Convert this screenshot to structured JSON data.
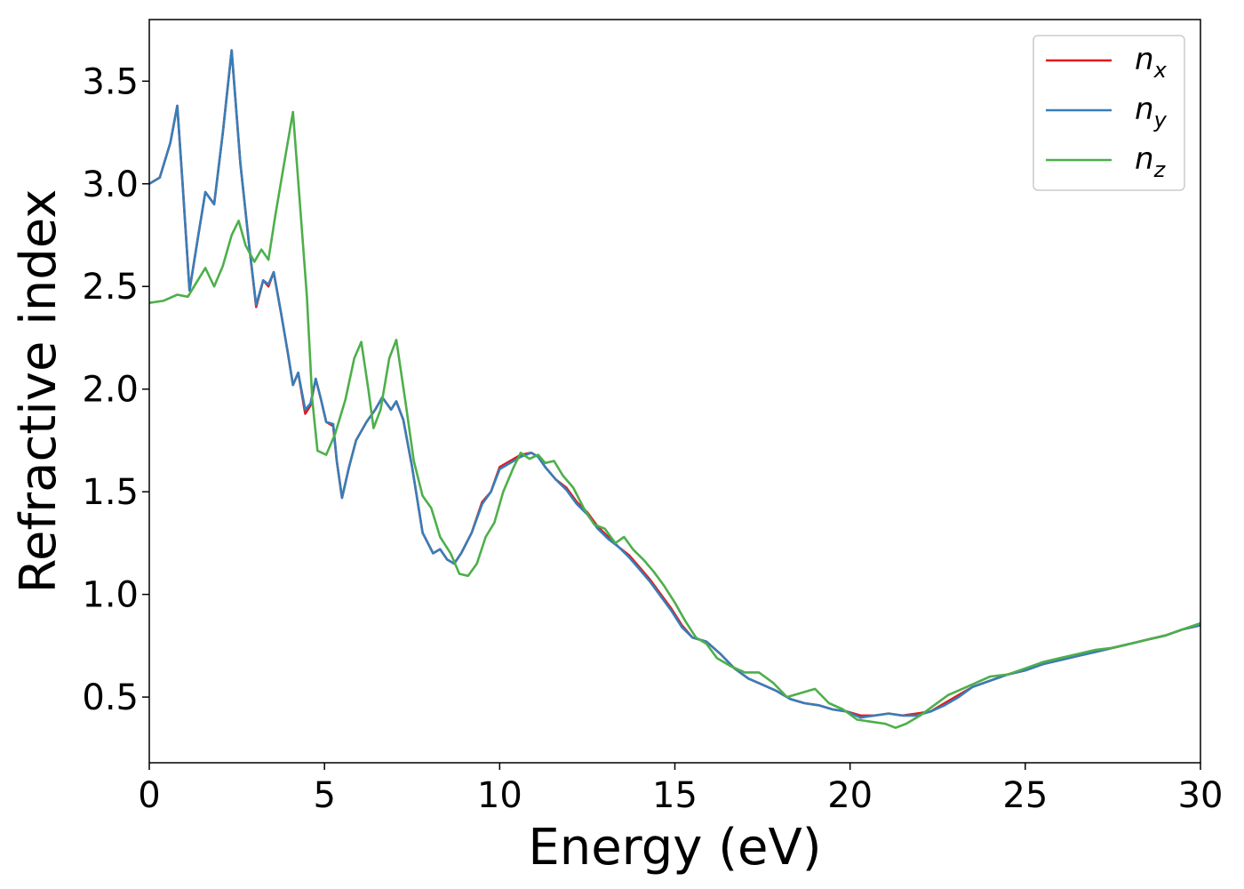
{
  "chart_data": {
    "type": "line",
    "title": "",
    "xlabel": "Energy (eV)",
    "ylabel": "Refractive index",
    "xlim": [
      0,
      30
    ],
    "ylim": [
      0.18,
      3.8
    ],
    "x_ticks": [
      0,
      5,
      10,
      15,
      20,
      25,
      30
    ],
    "y_ticks": [
      0.5,
      1.0,
      1.5,
      2.0,
      2.5,
      3.0,
      3.5
    ],
    "grid": false,
    "legend_position": "top-right",
    "series": [
      {
        "name": "n_x",
        "label_base": "n",
        "label_sub": "x",
        "color": "#e41a1c",
        "points": [
          [
            0,
            3.0
          ],
          [
            0.3,
            3.03
          ],
          [
            0.6,
            3.2
          ],
          [
            0.8,
            3.38
          ],
          [
            0.95,
            3.0
          ],
          [
            1.15,
            2.48
          ],
          [
            1.4,
            2.75
          ],
          [
            1.6,
            2.96
          ],
          [
            1.85,
            2.9
          ],
          [
            2.1,
            3.25
          ],
          [
            2.35,
            3.65
          ],
          [
            2.6,
            3.1
          ],
          [
            2.85,
            2.7
          ],
          [
            3.05,
            2.4
          ],
          [
            3.25,
            2.53
          ],
          [
            3.4,
            2.5
          ],
          [
            3.55,
            2.57
          ],
          [
            3.75,
            2.38
          ],
          [
            3.95,
            2.18
          ],
          [
            4.1,
            2.02
          ],
          [
            4.25,
            2.08
          ],
          [
            4.45,
            1.88
          ],
          [
            4.6,
            1.92
          ],
          [
            4.75,
            2.05
          ],
          [
            4.9,
            1.95
          ],
          [
            5.05,
            1.84
          ],
          [
            5.25,
            1.82
          ],
          [
            5.35,
            1.65
          ],
          [
            5.5,
            1.47
          ],
          [
            5.7,
            1.62
          ],
          [
            5.9,
            1.75
          ],
          [
            6.2,
            1.84
          ],
          [
            6.45,
            1.9
          ],
          [
            6.65,
            1.96
          ],
          [
            6.9,
            1.9
          ],
          [
            7.05,
            1.94
          ],
          [
            7.25,
            1.85
          ],
          [
            7.5,
            1.62
          ],
          [
            7.8,
            1.3
          ],
          [
            8.1,
            1.2
          ],
          [
            8.3,
            1.22
          ],
          [
            8.5,
            1.17
          ],
          [
            8.7,
            1.15
          ],
          [
            8.9,
            1.2
          ],
          [
            9.2,
            1.3
          ],
          [
            9.5,
            1.45
          ],
          [
            9.75,
            1.5
          ],
          [
            10.0,
            1.62
          ],
          [
            10.3,
            1.65
          ],
          [
            10.6,
            1.68
          ],
          [
            10.9,
            1.69
          ],
          [
            11.1,
            1.67
          ],
          [
            11.3,
            1.62
          ],
          [
            11.6,
            1.56
          ],
          [
            11.9,
            1.52
          ],
          [
            12.2,
            1.45
          ],
          [
            12.5,
            1.4
          ],
          [
            12.8,
            1.33
          ],
          [
            13.1,
            1.28
          ],
          [
            13.4,
            1.23
          ],
          [
            13.7,
            1.19
          ],
          [
            14.0,
            1.13
          ],
          [
            14.3,
            1.07
          ],
          [
            14.6,
            1.0
          ],
          [
            14.9,
            0.93
          ],
          [
            15.2,
            0.85
          ],
          [
            15.5,
            0.79
          ],
          [
            15.9,
            0.77
          ],
          [
            16.3,
            0.71
          ],
          [
            16.7,
            0.64
          ],
          [
            17.1,
            0.59
          ],
          [
            17.5,
            0.56
          ],
          [
            17.9,
            0.53
          ],
          [
            18.3,
            0.49
          ],
          [
            18.7,
            0.47
          ],
          [
            19.1,
            0.46
          ],
          [
            19.5,
            0.44
          ],
          [
            19.9,
            0.43
          ],
          [
            20.3,
            0.41
          ],
          [
            20.7,
            0.41
          ],
          [
            21.1,
            0.42
          ],
          [
            21.5,
            0.41
          ],
          [
            21.9,
            0.42
          ],
          [
            22.3,
            0.43
          ],
          [
            22.7,
            0.47
          ],
          [
            23.1,
            0.51
          ],
          [
            23.5,
            0.55
          ],
          [
            24.0,
            0.58
          ],
          [
            24.5,
            0.61
          ],
          [
            25.0,
            0.63
          ],
          [
            25.5,
            0.66
          ],
          [
            26.0,
            0.68
          ],
          [
            26.5,
            0.7
          ],
          [
            27.0,
            0.72
          ],
          [
            27.5,
            0.74
          ],
          [
            28.0,
            0.76
          ],
          [
            28.5,
            0.78
          ],
          [
            29.0,
            0.8
          ],
          [
            29.5,
            0.83
          ],
          [
            30.0,
            0.85
          ]
        ]
      },
      {
        "name": "n_y",
        "label_base": "n",
        "label_sub": "y",
        "color": "#377eb8",
        "points": [
          [
            0,
            3.0
          ],
          [
            0.3,
            3.03
          ],
          [
            0.6,
            3.2
          ],
          [
            0.8,
            3.38
          ],
          [
            0.95,
            3.0
          ],
          [
            1.15,
            2.48
          ],
          [
            1.4,
            2.75
          ],
          [
            1.6,
            2.96
          ],
          [
            1.85,
            2.9
          ],
          [
            2.1,
            3.25
          ],
          [
            2.35,
            3.65
          ],
          [
            2.6,
            3.1
          ],
          [
            2.85,
            2.7
          ],
          [
            3.05,
            2.41
          ],
          [
            3.25,
            2.53
          ],
          [
            3.4,
            2.51
          ],
          [
            3.55,
            2.57
          ],
          [
            3.75,
            2.38
          ],
          [
            3.95,
            2.18
          ],
          [
            4.1,
            2.02
          ],
          [
            4.25,
            2.08
          ],
          [
            4.45,
            1.9
          ],
          [
            4.6,
            1.93
          ],
          [
            4.75,
            2.05
          ],
          [
            4.9,
            1.95
          ],
          [
            5.05,
            1.84
          ],
          [
            5.25,
            1.83
          ],
          [
            5.35,
            1.65
          ],
          [
            5.5,
            1.47
          ],
          [
            5.7,
            1.62
          ],
          [
            5.9,
            1.75
          ],
          [
            6.2,
            1.84
          ],
          [
            6.45,
            1.9
          ],
          [
            6.65,
            1.96
          ],
          [
            6.9,
            1.9
          ],
          [
            7.05,
            1.94
          ],
          [
            7.25,
            1.85
          ],
          [
            7.5,
            1.62
          ],
          [
            7.8,
            1.3
          ],
          [
            8.1,
            1.2
          ],
          [
            8.3,
            1.22
          ],
          [
            8.5,
            1.17
          ],
          [
            8.7,
            1.15
          ],
          [
            8.9,
            1.2
          ],
          [
            9.2,
            1.3
          ],
          [
            9.5,
            1.44
          ],
          [
            9.75,
            1.5
          ],
          [
            10.0,
            1.61
          ],
          [
            10.3,
            1.64
          ],
          [
            10.6,
            1.67
          ],
          [
            10.9,
            1.69
          ],
          [
            11.1,
            1.67
          ],
          [
            11.3,
            1.62
          ],
          [
            11.6,
            1.56
          ],
          [
            11.9,
            1.51
          ],
          [
            12.2,
            1.44
          ],
          [
            12.5,
            1.39
          ],
          [
            12.8,
            1.32
          ],
          [
            13.1,
            1.27
          ],
          [
            13.4,
            1.23
          ],
          [
            13.7,
            1.18
          ],
          [
            14.0,
            1.12
          ],
          [
            14.3,
            1.06
          ],
          [
            14.6,
            0.99
          ],
          [
            14.9,
            0.92
          ],
          [
            15.2,
            0.84
          ],
          [
            15.5,
            0.79
          ],
          [
            15.9,
            0.77
          ],
          [
            16.3,
            0.71
          ],
          [
            16.7,
            0.64
          ],
          [
            17.1,
            0.59
          ],
          [
            17.5,
            0.56
          ],
          [
            17.9,
            0.53
          ],
          [
            18.3,
            0.49
          ],
          [
            18.7,
            0.47
          ],
          [
            19.1,
            0.46
          ],
          [
            19.5,
            0.44
          ],
          [
            19.9,
            0.43
          ],
          [
            20.3,
            0.4
          ],
          [
            20.7,
            0.41
          ],
          [
            21.1,
            0.42
          ],
          [
            21.5,
            0.41
          ],
          [
            21.9,
            0.41
          ],
          [
            22.3,
            0.43
          ],
          [
            22.7,
            0.46
          ],
          [
            23.1,
            0.5
          ],
          [
            23.5,
            0.55
          ],
          [
            24.0,
            0.58
          ],
          [
            24.5,
            0.61
          ],
          [
            25.0,
            0.63
          ],
          [
            25.5,
            0.66
          ],
          [
            26.0,
            0.68
          ],
          [
            26.5,
            0.7
          ],
          [
            27.0,
            0.72
          ],
          [
            27.5,
            0.74
          ],
          [
            28.0,
            0.76
          ],
          [
            28.5,
            0.78
          ],
          [
            29.0,
            0.8
          ],
          [
            29.5,
            0.83
          ],
          [
            30.0,
            0.85
          ]
        ]
      },
      {
        "name": "n_z",
        "label_base": "n",
        "label_sub": "z",
        "color": "#4daf4a",
        "points": [
          [
            0,
            2.42
          ],
          [
            0.4,
            2.43
          ],
          [
            0.8,
            2.46
          ],
          [
            1.1,
            2.45
          ],
          [
            1.35,
            2.52
          ],
          [
            1.6,
            2.59
          ],
          [
            1.85,
            2.5
          ],
          [
            2.1,
            2.6
          ],
          [
            2.35,
            2.75
          ],
          [
            2.55,
            2.82
          ],
          [
            2.75,
            2.7
          ],
          [
            3.0,
            2.62
          ],
          [
            3.2,
            2.68
          ],
          [
            3.4,
            2.63
          ],
          [
            3.6,
            2.85
          ],
          [
            3.85,
            3.1
          ],
          [
            4.1,
            3.35
          ],
          [
            4.3,
            2.9
          ],
          [
            4.5,
            2.45
          ],
          [
            4.65,
            1.95
          ],
          [
            4.8,
            1.7
          ],
          [
            5.05,
            1.68
          ],
          [
            5.3,
            1.78
          ],
          [
            5.6,
            1.95
          ],
          [
            5.85,
            2.15
          ],
          [
            6.05,
            2.23
          ],
          [
            6.25,
            2.0
          ],
          [
            6.4,
            1.81
          ],
          [
            6.6,
            1.9
          ],
          [
            6.85,
            2.15
          ],
          [
            7.05,
            2.24
          ],
          [
            7.3,
            1.95
          ],
          [
            7.55,
            1.65
          ],
          [
            7.8,
            1.48
          ],
          [
            8.05,
            1.42
          ],
          [
            8.3,
            1.28
          ],
          [
            8.6,
            1.2
          ],
          [
            8.85,
            1.1
          ],
          [
            9.1,
            1.09
          ],
          [
            9.35,
            1.15
          ],
          [
            9.6,
            1.28
          ],
          [
            9.85,
            1.35
          ],
          [
            10.1,
            1.5
          ],
          [
            10.4,
            1.62
          ],
          [
            10.6,
            1.69
          ],
          [
            10.85,
            1.66
          ],
          [
            11.1,
            1.68
          ],
          [
            11.3,
            1.64
          ],
          [
            11.55,
            1.65
          ],
          [
            11.8,
            1.58
          ],
          [
            12.1,
            1.52
          ],
          [
            12.4,
            1.42
          ],
          [
            12.7,
            1.34
          ],
          [
            13.0,
            1.32
          ],
          [
            13.3,
            1.25
          ],
          [
            13.55,
            1.28
          ],
          [
            13.8,
            1.22
          ],
          [
            14.1,
            1.17
          ],
          [
            14.4,
            1.11
          ],
          [
            14.7,
            1.04
          ],
          [
            15.0,
            0.96
          ],
          [
            15.3,
            0.87
          ],
          [
            15.6,
            0.79
          ],
          [
            15.9,
            0.76
          ],
          [
            16.2,
            0.69
          ],
          [
            16.6,
            0.65
          ],
          [
            17.0,
            0.62
          ],
          [
            17.4,
            0.62
          ],
          [
            17.8,
            0.57
          ],
          [
            18.2,
            0.5
          ],
          [
            18.6,
            0.52
          ],
          [
            19.0,
            0.54
          ],
          [
            19.4,
            0.47
          ],
          [
            19.8,
            0.44
          ],
          [
            20.2,
            0.39
          ],
          [
            20.6,
            0.38
          ],
          [
            21.0,
            0.37
          ],
          [
            21.3,
            0.35
          ],
          [
            21.6,
            0.37
          ],
          [
            22.0,
            0.41
          ],
          [
            22.4,
            0.46
          ],
          [
            22.8,
            0.51
          ],
          [
            23.2,
            0.54
          ],
          [
            23.6,
            0.57
          ],
          [
            24.0,
            0.6
          ],
          [
            24.5,
            0.61
          ],
          [
            25.0,
            0.64
          ],
          [
            25.5,
            0.67
          ],
          [
            26.0,
            0.69
          ],
          [
            26.5,
            0.71
          ],
          [
            27.0,
            0.73
          ],
          [
            27.5,
            0.74
          ],
          [
            28.0,
            0.76
          ],
          [
            28.5,
            0.78
          ],
          [
            29.0,
            0.8
          ],
          [
            29.5,
            0.83
          ],
          [
            30.0,
            0.86
          ]
        ]
      }
    ]
  }
}
